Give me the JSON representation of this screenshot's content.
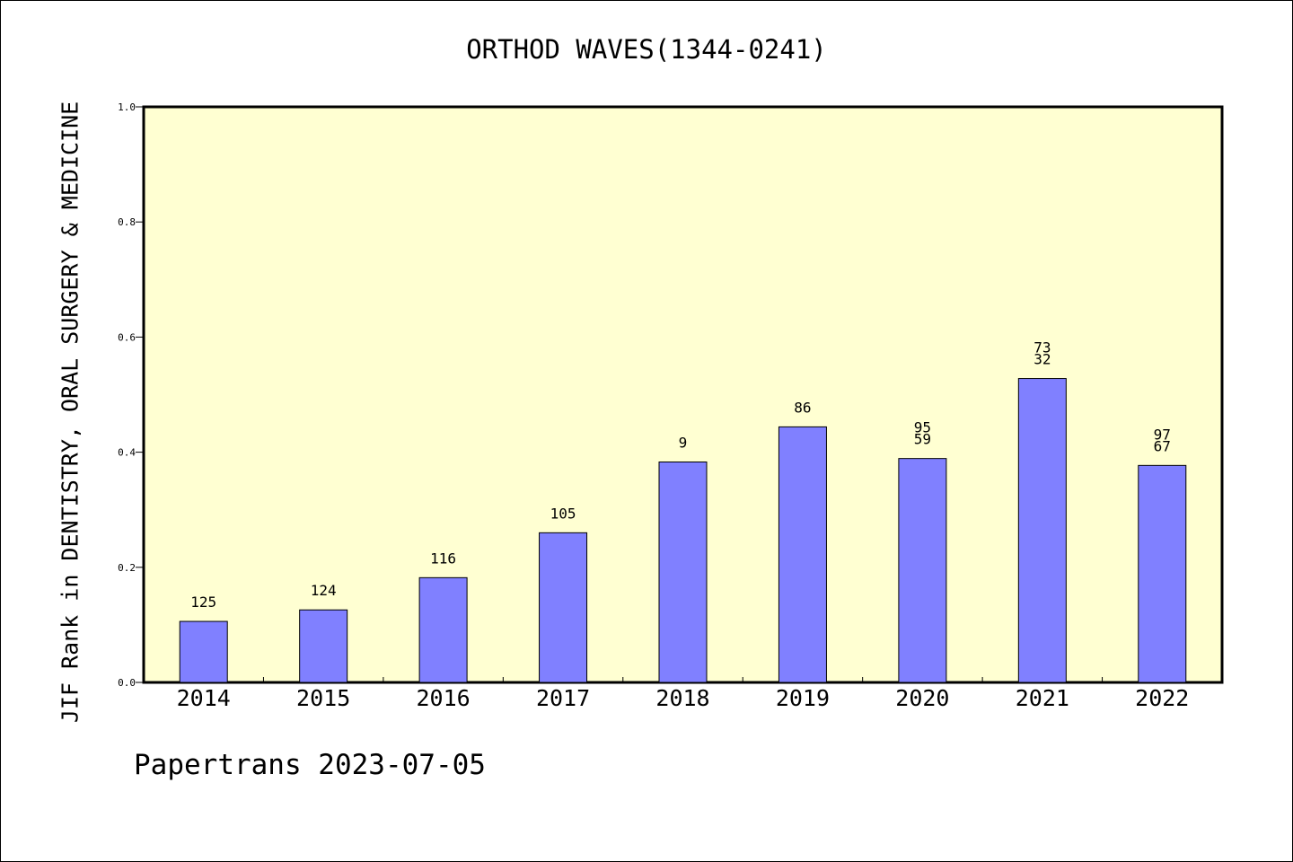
{
  "chart_data": {
    "type": "bar",
    "title": "ORTHOD WAVES(1344-0241)",
    "xlabel": "",
    "ylabel": "JIF Rank in DENTISTRY, ORAL SURGERY & MEDICINE",
    "ylim": [
      0,
      1.0
    ],
    "yticks": [
      "0.0",
      "0.2",
      "0.4",
      "0.6",
      "0.8",
      "1.0"
    ],
    "grid": false,
    "plot_background": "#FFFFD2",
    "bar_color": "#8080FF",
    "categories": [
      "2014",
      "2015",
      "2016",
      "2017",
      "2018",
      "2019",
      "2020",
      "2021",
      "2022"
    ],
    "values": [
      0.106,
      0.126,
      0.182,
      0.26,
      0.383,
      0.444,
      0.389,
      0.528,
      0.377
    ],
    "bar_labels": [
      [
        "125"
      ],
      [
        "124"
      ],
      [
        "116"
      ],
      [
        "105"
      ],
      [
        "9"
      ],
      [
        "86"
      ],
      [
        "95",
        "59"
      ],
      [
        "73",
        "32"
      ],
      [
        "97",
        "67"
      ]
    ]
  },
  "footer": {
    "text": "Papertrans 2023-07-05"
  }
}
